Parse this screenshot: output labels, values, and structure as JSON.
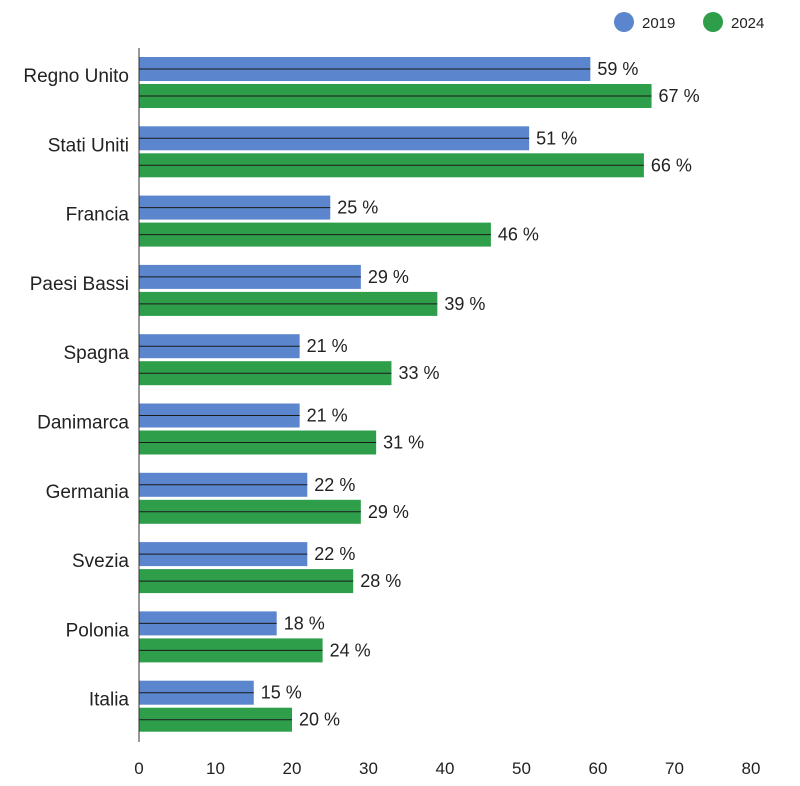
{
  "chart_data": {
    "type": "bar",
    "orientation": "horizontal",
    "title": "",
    "xlabel": "",
    "ylabel": "",
    "xlim": [
      0,
      80
    ],
    "xticks": [
      "0",
      "10",
      "20",
      "30",
      "40",
      "50",
      "60",
      "70",
      "80"
    ],
    "grid": false,
    "legend_position": "top-right",
    "categories": [
      "Regno Unito",
      "Stati Uniti",
      "Francia",
      "Paesi Bassi",
      "Spagna",
      "Danimarca",
      "Germania",
      "Svezia",
      "Polonia",
      "Italia"
    ],
    "series": [
      {
        "name": "2019",
        "color": "#5b85cc",
        "values": [
          59,
          51,
          25,
          29,
          21,
          21,
          22,
          22,
          18,
          15
        ],
        "labels": [
          "59 %",
          "51 %",
          "25 %",
          "29 %",
          "21 %",
          "21 %",
          "22 %",
          "22 %",
          "18 %",
          "15 %"
        ]
      },
      {
        "name": "2024",
        "color": "#2e9e4b",
        "values": [
          67,
          66,
          46,
          39,
          33,
          31,
          29,
          28,
          24,
          20
        ],
        "labels": [
          "67 %",
          "66 %",
          "46 %",
          "39 %",
          "33 %",
          "31 %",
          "29 %",
          "28 %",
          "24 %",
          "20 %"
        ]
      }
    ]
  }
}
